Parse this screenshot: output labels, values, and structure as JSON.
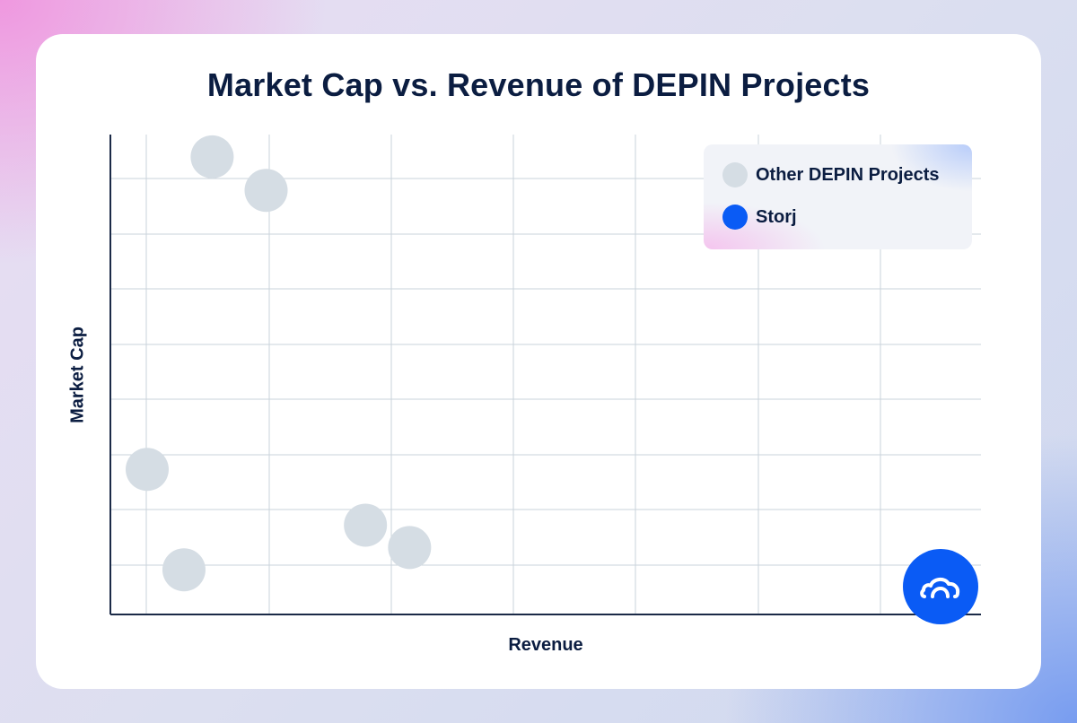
{
  "colors": {
    "other": "#d5dde4",
    "storj": "#0a5bf5",
    "grid": "#cad3db",
    "axis": "#1b2a47",
    "text": "#0b1d41"
  },
  "legend": {
    "items": [
      {
        "label": "Other DEPIN Projects",
        "color": "#d5dde4",
        "icon": "gray-dot"
      },
      {
        "label": "Storj",
        "color": "#0a5bf5",
        "icon": "blue-dot"
      }
    ]
  },
  "storj_icon": "storj-cloud-logo",
  "chart_data": {
    "type": "scatter",
    "title": "Market Cap vs. Revenue of DEPIN Projects",
    "xlabel": "Revenue",
    "ylabel": "Market Cap",
    "xlim": [
      0,
      7.1
    ],
    "ylim": [
      0,
      8.6
    ],
    "grid": true,
    "tick_labels": false,
    "legend_position": "top-right",
    "series": [
      {
        "name": "Other DEPIN Projects",
        "color": "#d5dde4",
        "points": [
          {
            "x": 0.83,
            "y": 8.2
          },
          {
            "x": 1.27,
            "y": 7.6
          },
          {
            "x": 0.3,
            "y": 2.6
          },
          {
            "x": 0.6,
            "y": 0.8
          },
          {
            "x": 2.08,
            "y": 1.6
          },
          {
            "x": 2.44,
            "y": 1.2
          }
        ]
      },
      {
        "name": "Storj",
        "color": "#0a5bf5",
        "points": [
          {
            "x": 6.77,
            "y": 0.5
          }
        ]
      }
    ]
  }
}
